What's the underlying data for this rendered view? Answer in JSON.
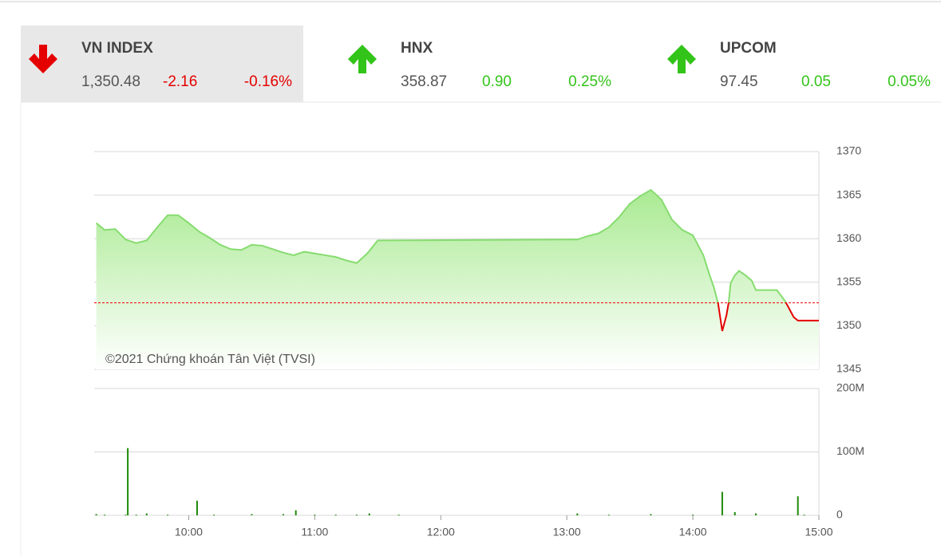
{
  "indices": [
    {
      "name": "VN INDEX",
      "value": "1,350.48",
      "change": "-2.16",
      "percent": "-0.16%",
      "direction": "down"
    },
    {
      "name": "HNX",
      "value": "358.87",
      "change": "0.90",
      "percent": "0.25%",
      "direction": "up"
    },
    {
      "name": "UPCOM",
      "value": "97.45",
      "change": "0.05",
      "percent": "0.05%",
      "direction": "up"
    }
  ],
  "colors": {
    "up": "#33c41a",
    "down": "#e50000"
  },
  "chart_data": [
    {
      "type": "line",
      "annotation": "©2021 Chứng khoán Tân Việt (TVSI)",
      "x": [
        556,
        560,
        565,
        570,
        575,
        580,
        585,
        590,
        595,
        600,
        605,
        610,
        615,
        620,
        625,
        630,
        635,
        640,
        645,
        650,
        655,
        660,
        665,
        670,
        675,
        680,
        685,
        690,
        780,
        785,
        790,
        795,
        800,
        805,
        810,
        815,
        820,
        825,
        830,
        835,
        840,
        845,
        848,
        850,
        852,
        853,
        854,
        855,
        856,
        857,
        858,
        860,
        862,
        865,
        868,
        870,
        875,
        880,
        884,
        888,
        890,
        900
      ],
      "series": [
        {
          "color": "#86dc6f",
          "below_color": "#e50000",
          "values": [
            1361.8,
            1361.0,
            1361.1,
            1359.9,
            1359.5,
            1359.8,
            1361.3,
            1362.7,
            1362.7,
            1361.8,
            1360.8,
            1360.1,
            1359.3,
            1358.8,
            1358.7,
            1359.3,
            1359.2,
            1358.8,
            1358.4,
            1358.1,
            1358.5,
            1358.3,
            1358.1,
            1357.9,
            1357.5,
            1357.2,
            1358.3,
            1359.8,
            1359.9,
            1359.9,
            1360.3,
            1360.6,
            1361.3,
            1362.5,
            1364.0,
            1364.9,
            1365.6,
            1364.5,
            1362.2,
            1361.0,
            1360.4,
            1358.1,
            1355.8,
            1354.4,
            1352.6,
            1351.0,
            1349.4,
            1350.3,
            1351.2,
            1352.6,
            1354.9,
            1355.8,
            1356.3,
            1355.8,
            1355.2,
            1354.1,
            1354.1,
            1354.1,
            1352.8,
            1351.0,
            1350.6,
            1350.6
          ]
        }
      ],
      "reference": 1352.64,
      "xlim": [
        555,
        900
      ],
      "ylim": [
        1345,
        1370
      ],
      "yticks": [
        1345,
        1350,
        1355,
        1360,
        1365,
        1370
      ],
      "grid": true
    },
    {
      "type": "bar",
      "color": "#1f8a0a",
      "x": [
        556,
        560,
        570,
        571,
        575,
        580,
        590,
        604,
        612,
        630,
        645,
        651,
        660,
        670,
        680,
        686,
        700,
        785,
        800,
        820,
        840,
        854,
        860,
        870,
        890,
        893
      ],
      "values": [
        2,
        1,
        1,
        106,
        1,
        3,
        1,
        23,
        1,
        2,
        2,
        8,
        1,
        1,
        1,
        3,
        1,
        3,
        1,
        2,
        1,
        37,
        5,
        3,
        30,
        1
      ],
      "xlim": [
        555,
        900
      ],
      "xticks": [
        {
          "value": 600,
          "label": "10:00"
        },
        {
          "value": 660,
          "label": "11:00"
        },
        {
          "value": 720,
          "label": "12:00"
        },
        {
          "value": 780,
          "label": "13:00"
        },
        {
          "value": 840,
          "label": "14:00"
        },
        {
          "value": 900,
          "label": "15:00"
        }
      ],
      "ylim": [
        0,
        200
      ],
      "yticks": [
        0,
        {
          "value": 100,
          "label": "100M"
        },
        {
          "value": 200,
          "label": "200M"
        }
      ],
      "grid": true
    }
  ]
}
